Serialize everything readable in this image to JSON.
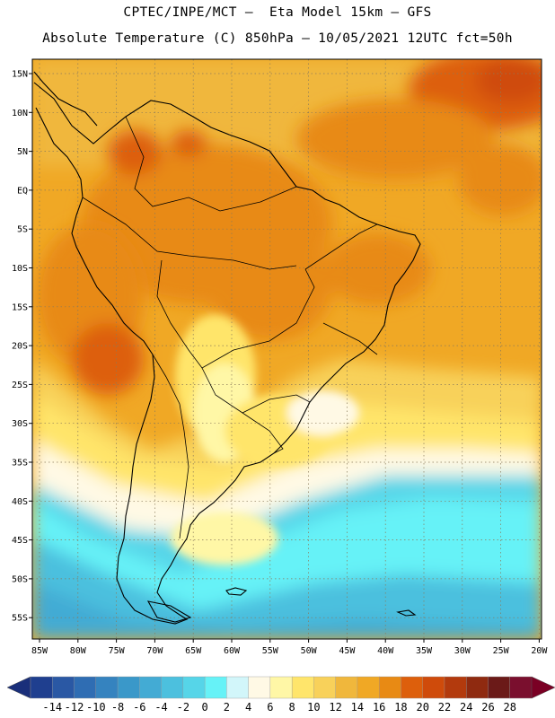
{
  "header": {
    "title_line1": "CPTEC/INPE/MCT –  Eta Model 15km – GFS",
    "title_line2": "Absolute Temperature (C) 850hPa – 10/05/2021 12UTC fct=50h"
  },
  "map": {
    "lat_labels": [
      "15N",
      "10N",
      "5N",
      "EQ",
      "5S",
      "10S",
      "15S",
      "20S",
      "25S",
      "30S",
      "35S",
      "40S",
      "45S",
      "50S",
      "55S"
    ],
    "lon_labels": [
      "85W",
      "80W",
      "75W",
      "70W",
      "65W",
      "60W",
      "55W",
      "50W",
      "45W",
      "40W",
      "35W",
      "30W",
      "25W",
      "20W"
    ],
    "gridlines": "dotted",
    "domain": {
      "lon_min": -86,
      "lon_max": -20,
      "lat_min": -57.5,
      "lat_max": 16.5
    }
  },
  "colorbar": {
    "labels": [
      "-14",
      "-12",
      "-10",
      "-8",
      "-6",
      "-4",
      "-2",
      "0",
      "2",
      "4",
      "6",
      "8",
      "10",
      "12",
      "14",
      "16",
      "18",
      "20",
      "22",
      "24",
      "26",
      "28"
    ],
    "colors": [
      "#1f3f8f",
      "#2a58a4",
      "#2f6db3",
      "#3583bf",
      "#3a98c9",
      "#43abd4",
      "#4cc0de",
      "#56d5e8",
      "#66f2f7",
      "#d2f6fa",
      "#fff9e5",
      "#fff7a6",
      "#ffe56b",
      "#f8d15a",
      "#f0b73c",
      "#f0a825",
      "#e88a14",
      "#dd5f0c",
      "#cf4b0b",
      "#b33a0d",
      "#8f2a10",
      "#6b1a18",
      "#7a0f2e"
    ],
    "below_color": "#1a2f7a",
    "above_color": "#7a0024"
  }
}
